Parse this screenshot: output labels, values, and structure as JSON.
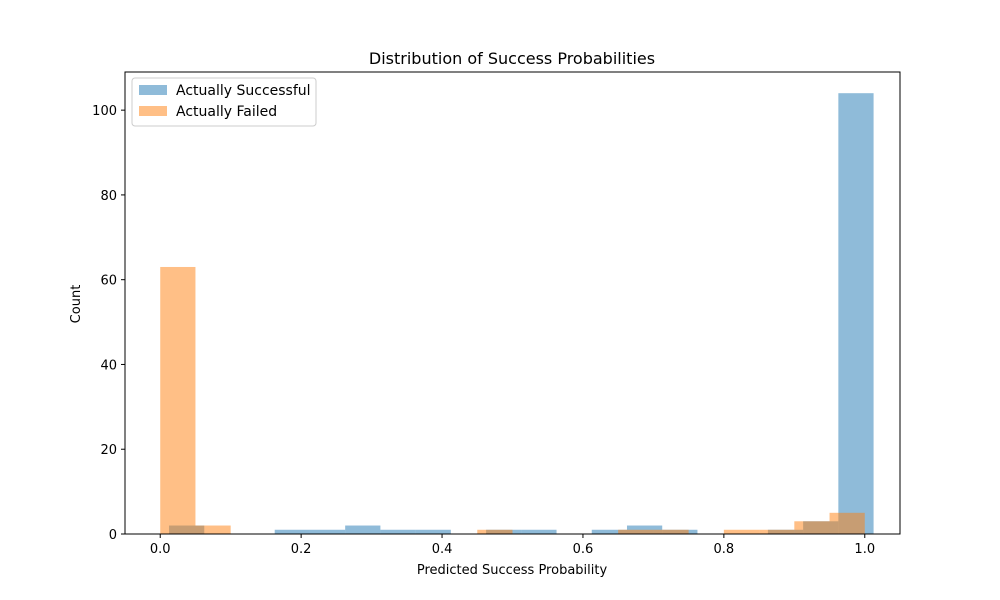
{
  "chart_data": {
    "type": "bar",
    "title": "Distribution of Success Probabilities",
    "xlabel": "Predicted Success Probability",
    "ylabel": "Count",
    "xlim": [
      -0.05,
      1.05
    ],
    "ylim": [
      0,
      109
    ],
    "xticks": [
      0.0,
      0.2,
      0.4,
      0.6,
      0.8,
      1.0
    ],
    "xtick_labels": [
      "0.0",
      "0.2",
      "0.4",
      "0.6",
      "0.8",
      "1.0"
    ],
    "yticks": [
      0,
      20,
      40,
      60,
      80,
      100
    ],
    "ytick_labels": [
      "0",
      "20",
      "40",
      "60",
      "80",
      "100"
    ],
    "grid": false,
    "legend_position": "top-left",
    "series": [
      {
        "name": "Actually Successful",
        "color": "#1f77b4",
        "alpha": 0.5,
        "bins": [
          {
            "x0": 0.0125,
            "x1": 0.0625,
            "count": 2
          },
          {
            "x0": 0.0625,
            "x1": 0.1125,
            "count": 0
          },
          {
            "x0": 0.1125,
            "x1": 0.1625,
            "count": 0
          },
          {
            "x0": 0.1625,
            "x1": 0.2125,
            "count": 1
          },
          {
            "x0": 0.2125,
            "x1": 0.2625,
            "count": 1
          },
          {
            "x0": 0.2625,
            "x1": 0.3125,
            "count": 2
          },
          {
            "x0": 0.3125,
            "x1": 0.3625,
            "count": 1
          },
          {
            "x0": 0.3625,
            "x1": 0.4125,
            "count": 1
          },
          {
            "x0": 0.4125,
            "x1": 0.4625,
            "count": 0
          },
          {
            "x0": 0.4625,
            "x1": 0.5125,
            "count": 1
          },
          {
            "x0": 0.5125,
            "x1": 0.5625,
            "count": 1
          },
          {
            "x0": 0.5625,
            "x1": 0.6125,
            "count": 0
          },
          {
            "x0": 0.6125,
            "x1": 0.6625,
            "count": 1
          },
          {
            "x0": 0.6625,
            "x1": 0.7125,
            "count": 2
          },
          {
            "x0": 0.7125,
            "x1": 0.7625,
            "count": 1
          },
          {
            "x0": 0.7625,
            "x1": 0.8125,
            "count": 0
          },
          {
            "x0": 0.8125,
            "x1": 0.8625,
            "count": 0
          },
          {
            "x0": 0.8625,
            "x1": 0.9125,
            "count": 1
          },
          {
            "x0": 0.9125,
            "x1": 0.9625,
            "count": 3
          },
          {
            "x0": 0.9625,
            "x1": 1.0125,
            "count": 104
          }
        ]
      },
      {
        "name": "Actually Failed",
        "color": "#ff7f0e",
        "alpha": 0.5,
        "bins": [
          {
            "x0": 0.0,
            "x1": 0.05,
            "count": 63
          },
          {
            "x0": 0.05,
            "x1": 0.1,
            "count": 2
          },
          {
            "x0": 0.1,
            "x1": 0.15,
            "count": 0
          },
          {
            "x0": 0.15,
            "x1": 0.2,
            "count": 0
          },
          {
            "x0": 0.2,
            "x1": 0.25,
            "count": 0
          },
          {
            "x0": 0.25,
            "x1": 0.3,
            "count": 0
          },
          {
            "x0": 0.3,
            "x1": 0.35,
            "count": 0
          },
          {
            "x0": 0.35,
            "x1": 0.4,
            "count": 0
          },
          {
            "x0": 0.4,
            "x1": 0.45,
            "count": 0
          },
          {
            "x0": 0.45,
            "x1": 0.5,
            "count": 1
          },
          {
            "x0": 0.5,
            "x1": 0.55,
            "count": 0
          },
          {
            "x0": 0.55,
            "x1": 0.6,
            "count": 0
          },
          {
            "x0": 0.6,
            "x1": 0.65,
            "count": 0
          },
          {
            "x0": 0.65,
            "x1": 0.7,
            "count": 1
          },
          {
            "x0": 0.7,
            "x1": 0.75,
            "count": 1
          },
          {
            "x0": 0.75,
            "x1": 0.8,
            "count": 0
          },
          {
            "x0": 0.8,
            "x1": 0.85,
            "count": 1
          },
          {
            "x0": 0.85,
            "x1": 0.9,
            "count": 1
          },
          {
            "x0": 0.9,
            "x1": 0.95,
            "count": 3
          },
          {
            "x0": 0.95,
            "x1": 1.0,
            "count": 5
          }
        ]
      }
    ]
  }
}
